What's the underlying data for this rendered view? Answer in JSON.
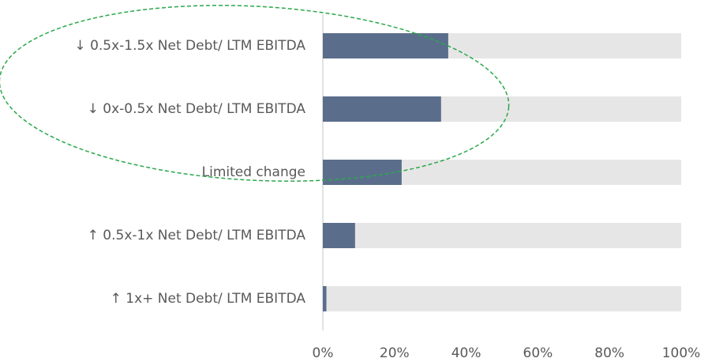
{
  "chart_data": {
    "type": "bar",
    "orientation": "horizontal",
    "categories": [
      "↓ 0.5x-1.5x Net Debt/ LTM EBITDA",
      "↓ 0x-0.5x Net Debt/ LTM EBITDA",
      "Limited change",
      "↑ 0.5x-1x Net Debt/ LTM EBITDA",
      "↑ 1x+ Net Debt/ LTM EBITDA"
    ],
    "values": [
      35,
      33,
      22,
      9,
      1
    ],
    "color": "#5a6e8c",
    "track_color": "#e7e6e6",
    "xlim": [
      0,
      100
    ],
    "xticks": [
      {
        "value": 0,
        "label": "0%"
      },
      {
        "value": 20,
        "label": "20%"
      },
      {
        "value": 40,
        "label": "40%"
      },
      {
        "value": 60,
        "label": "60%"
      },
      {
        "value": 80,
        "label": "80%"
      },
      {
        "value": 100,
        "label": "100%"
      }
    ],
    "grid": false
  }
}
